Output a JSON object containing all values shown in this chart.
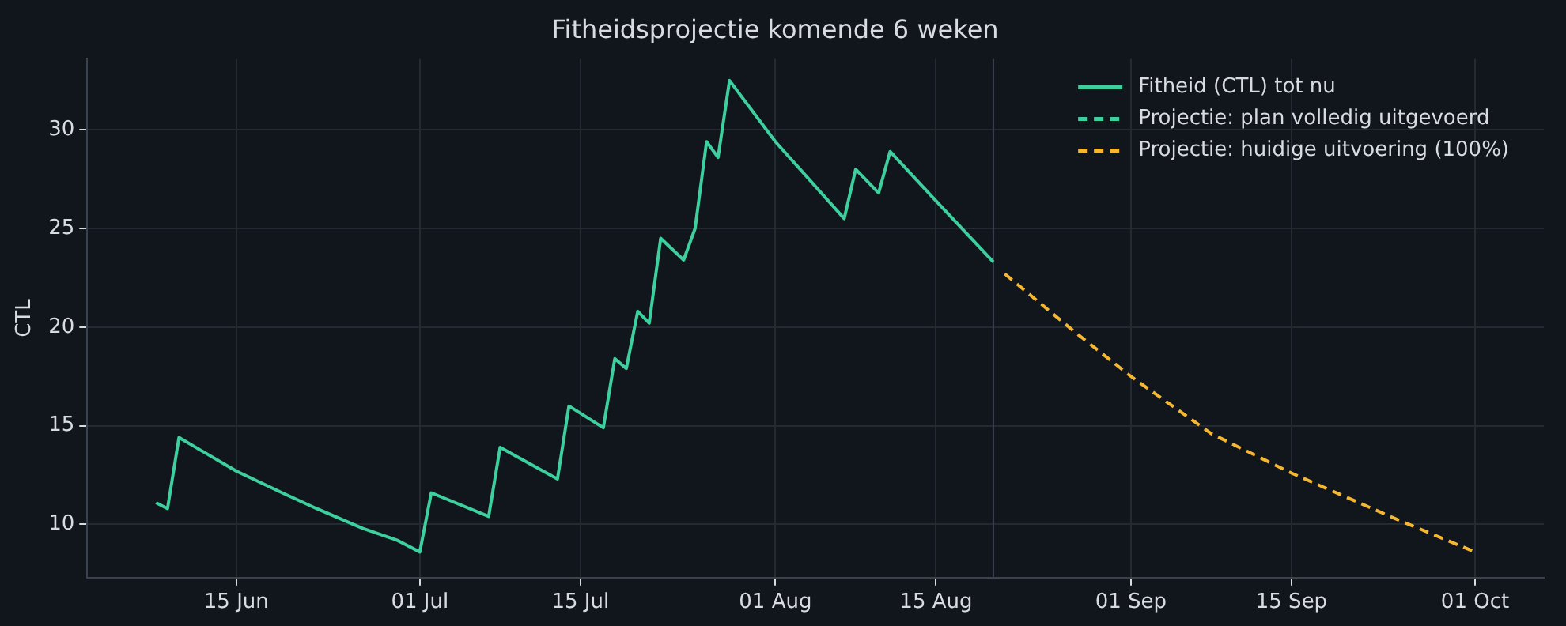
{
  "chart_data": {
    "type": "line",
    "title": "Fitheidsprojectie komende 6 weken",
    "ylabel": "CTL",
    "xlim": [
      "--06-02",
      "--10-07"
    ],
    "xticks": [
      {
        "value": "--06-15",
        "label": "15 Jun"
      },
      {
        "value": "--07-01",
        "label": "01 Jul"
      },
      {
        "value": "--07-15",
        "label": "15 Jul"
      },
      {
        "value": "--08-01",
        "label": "01 Aug"
      },
      {
        "value": "--08-15",
        "label": "15 Aug"
      },
      {
        "value": "--09-01",
        "label": "01 Sep"
      },
      {
        "value": "--09-15",
        "label": "15 Sep"
      },
      {
        "value": "--10-01",
        "label": "01 Oct"
      }
    ],
    "ylim": [
      7.3,
      33.6
    ],
    "yticks": [
      10,
      15,
      20,
      25,
      30
    ],
    "grid": true,
    "legend": "top right",
    "marker": "none",
    "ref_lines": [
      {
        "axis": "x",
        "value": "--08-20",
        "label": null,
        "color": "#3a4250"
      }
    ],
    "series": [
      {
        "name": "Fitheid (CTL) tot nu",
        "color": "#3ecf9e",
        "line_style": "solid",
        "x": [
          "--06-08",
          "--06-09",
          "--06-10",
          "--06-15",
          "--06-19",
          "--06-22",
          "--06-26",
          "--06-29",
          "--07-01",
          "--07-02",
          "--07-07",
          "--07-08",
          "--07-13",
          "--07-14",
          "--07-17",
          "--07-18",
          "--07-19",
          "--07-20",
          "--07-21",
          "--07-22",
          "--07-24",
          "--07-25",
          "--07-26",
          "--07-27",
          "--07-28",
          "--08-01",
          "--08-05",
          "--08-07",
          "--08-08",
          "--08-10",
          "--08-11",
          "--08-15",
          "--08-20"
        ],
        "values": [
          11.1,
          10.8,
          14.4,
          12.7,
          11.6,
          10.8,
          9.8,
          9.2,
          8.6,
          11.6,
          10.4,
          13.9,
          12.3,
          16.0,
          14.9,
          18.4,
          17.9,
          20.8,
          20.2,
          24.5,
          23.4,
          25.0,
          29.4,
          28.6,
          32.5,
          29.4,
          26.8,
          25.5,
          28.0,
          26.8,
          28.9,
          26.4,
          23.3
        ]
      },
      {
        "name": "Projectie: plan volledig uitgevoerd",
        "color": "#3ecf9e",
        "line_style": "dashed"
      },
      {
        "name": "Projectie: huidige uitvoering (100%)",
        "color": "#f5b731",
        "line_style": "dashed",
        "x": [
          "--08-21",
          "--08-27",
          "--09-01",
          "--09-08",
          "--09-15",
          "--09-24",
          "--10-01"
        ],
        "values": [
          22.7,
          19.8,
          17.5,
          14.6,
          12.6,
          10.3,
          8.6
        ]
      }
    ]
  }
}
